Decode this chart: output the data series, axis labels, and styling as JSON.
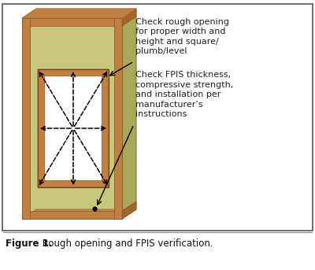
{
  "fig_width": 4.0,
  "fig_height": 3.43,
  "dpi": 100,
  "bg_color": "#ffffff",
  "border_color": "#555555",
  "wall_face_color": "#c8c87a",
  "wall_side_color": "#a8a858",
  "wall_top_color": "#c8a060",
  "wall_bottom_color": "#b89050",
  "frame_color": "#c08040",
  "frame_shadow": "#a06828",
  "caption_bold": "Figure 1.",
  "caption_normal": " Rough opening and FPIS verification.",
  "annotation1": "Check rough opening\nfor proper width and\nheight and square/\nplumb/level",
  "annotation2": "Check FPIS thickness,\ncompressive strength,\nand installation per\nmanufacturer’s\ninstructions",
  "text_color": "#222222",
  "arrow_color": "#111111"
}
